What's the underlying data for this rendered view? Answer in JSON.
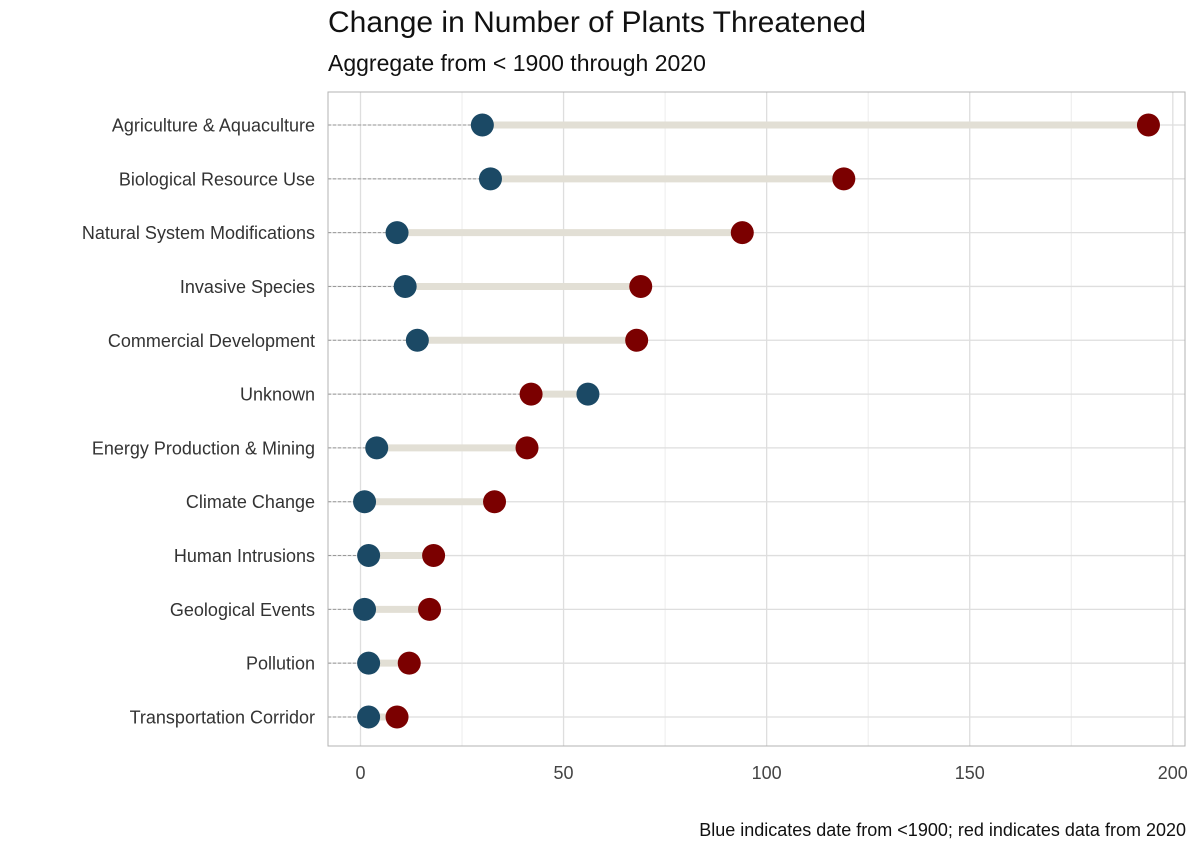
{
  "chart_data": {
    "type": "dumbbell",
    "title": "Change in Number of Plants Threatened",
    "subtitle": "Aggregate from < 1900 through 2020",
    "caption": "Blue indicates date from <1900; red indicates data from 2020",
    "xlim": [
      -8,
      203
    ],
    "x_ticks": [
      0,
      50,
      100,
      150,
      200
    ],
    "x_tick_labels": [
      "0",
      "50",
      "100",
      "150",
      "200"
    ],
    "grid": true,
    "categories": [
      "Agriculture & Aquaculture",
      "Biological Resource Use",
      "Natural System Modifications",
      "Invasive Species",
      "Commercial Development",
      "Unknown",
      "Energy Production & Mining",
      "Climate Change",
      "Human Intrusions",
      "Geological Events",
      "Pollution",
      "Transportation Corridor"
    ],
    "series": [
      {
        "values": [
          30,
          32,
          9,
          11,
          14,
          56,
          4,
          1,
          2,
          1,
          2,
          2
        ]
      },
      {
        "values": [
          194,
          119,
          94,
          69,
          68,
          42,
          41,
          33,
          18,
          17,
          12,
          9
        ]
      }
    ],
    "colors": {
      "blue": "#1b4965",
      "red": "#7b0000",
      "segment": "#e2dfd5",
      "grid": "#dedede",
      "leader": "#999999",
      "panel_border": "#b3b3b3"
    }
  }
}
